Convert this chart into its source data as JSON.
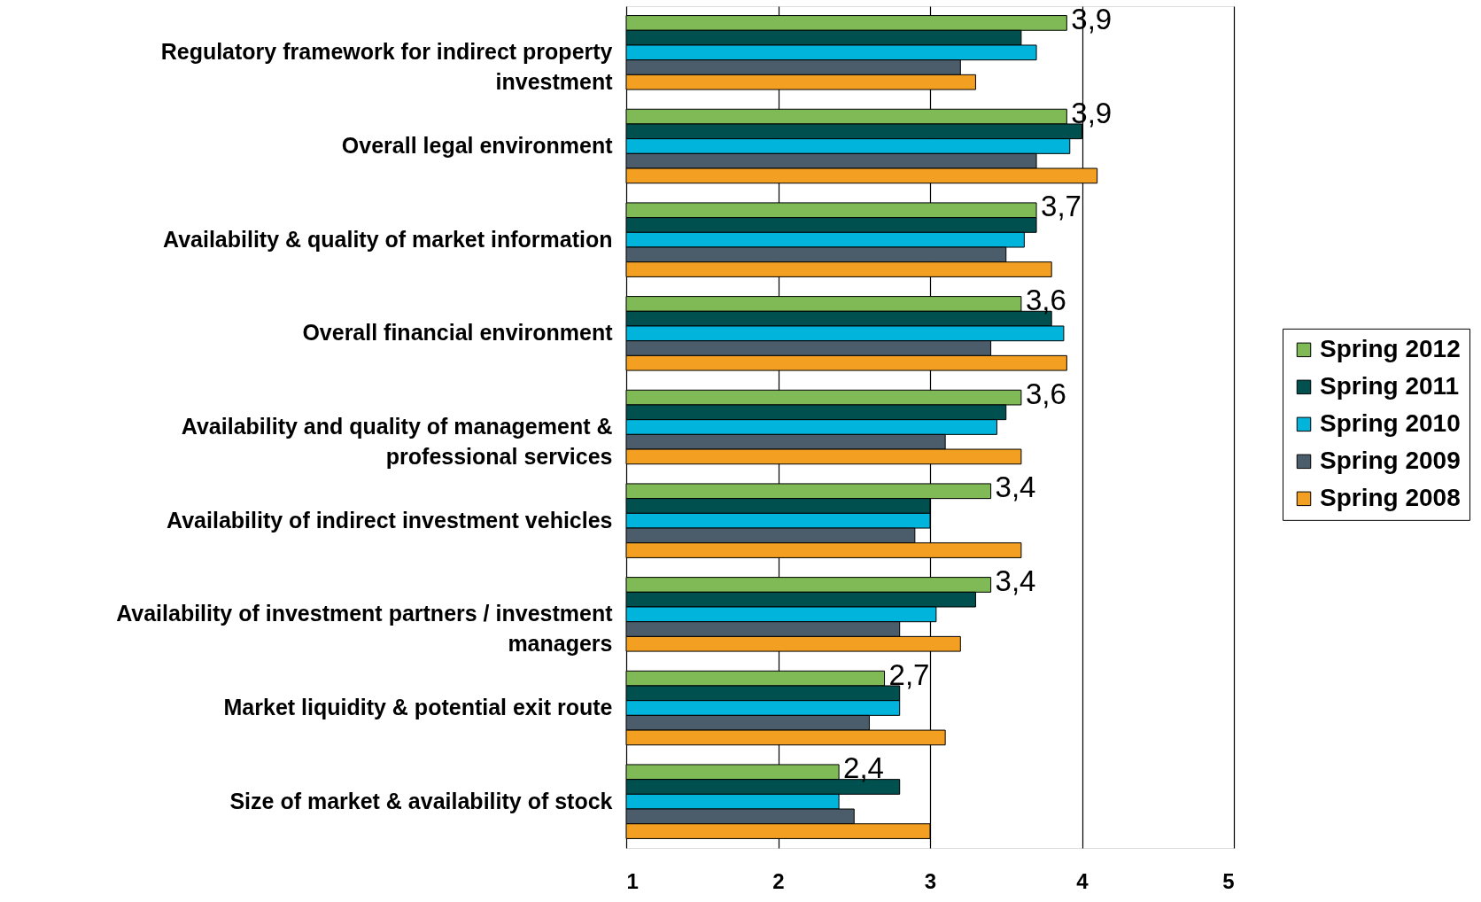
{
  "chart_data": {
    "type": "bar",
    "orientation": "horizontal",
    "categories": [
      "Regulatory framework for indirect property investment",
      "Overall legal environment",
      "Availability & quality of market information",
      "Overall financial environment",
      "Availability and quality of management & professional services",
      "Availability of indirect investment vehicles",
      "Availability of investment partners / investment managers",
      "Market liquidity & potential exit route",
      "Size of market & availability of stock"
    ],
    "series": [
      {
        "name": "Spring 2012",
        "color": "#7fba56",
        "values": [
          3.9,
          3.9,
          3.7,
          3.6,
          3.6,
          3.4,
          3.4,
          2.7,
          2.4
        ],
        "value_labels": [
          "3,9",
          "3,9",
          "3,7",
          "3,6",
          "3,6",
          "3,4",
          "3,4",
          "2,7",
          "2,4"
        ]
      },
      {
        "name": "Spring 2011",
        "color": "#00504f",
        "values": [
          3.6,
          4.0,
          3.7,
          3.8,
          3.5,
          3.0,
          3.3,
          2.8,
          2.8
        ]
      },
      {
        "name": "Spring 2010",
        "color": "#00b4dc",
        "values": [
          3.7,
          3.92,
          3.62,
          3.88,
          3.44,
          3.0,
          3.04,
          2.8,
          2.4
        ]
      },
      {
        "name": "Spring 2009",
        "color": "#4b5d6b",
        "values": [
          3.2,
          3.7,
          3.5,
          3.4,
          3.1,
          2.9,
          2.8,
          2.6,
          2.5
        ]
      },
      {
        "name": "Spring 2008",
        "color": "#f39f22",
        "values": [
          3.3,
          4.1,
          3.8,
          3.9,
          3.6,
          3.6,
          3.2,
          3.1,
          3.0
        ]
      }
    ],
    "xlim": [
      1,
      5
    ],
    "xticks": [
      1,
      2,
      3,
      4,
      5
    ],
    "grid": "x",
    "legend": "right"
  }
}
